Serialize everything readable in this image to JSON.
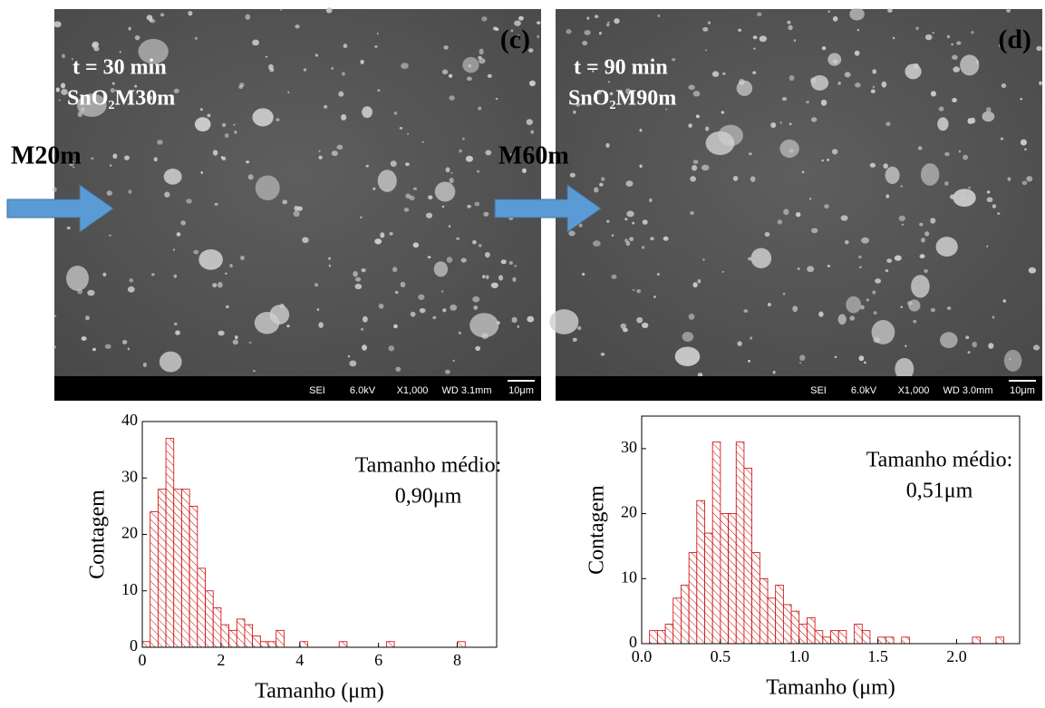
{
  "panels": [
    {
      "label": "(c)",
      "time": "t = 30 min",
      "sample": "SnO₂M30m",
      "arrow_label": "M20m",
      "info": [
        "SEI",
        "6.0kV",
        "X1,000",
        "WD 3.1mm",
        "10μm"
      ]
    },
    {
      "label": "(d)",
      "time": "t = 90 min",
      "sample": "SnO₂M90m",
      "arrow_label": "M60m",
      "info": [
        "SEI",
        "6.0kV",
        "X1,000",
        "WD 3.0mm",
        "10μm"
      ]
    }
  ],
  "chart_data": [
    {
      "type": "histogram",
      "xlabel": "Tamanho (μm)",
      "ylabel": "Contagem",
      "annotation": [
        "Tamanho médio:",
        "0,90μm"
      ],
      "color": "#cc0000",
      "bins": [
        0,
        0.2,
        0.4,
        0.6,
        0.8,
        1.0,
        1.2,
        1.4,
        1.6,
        1.8,
        2.0,
        2.2,
        2.4,
        2.6,
        2.8,
        3.0,
        3.2,
        3.4,
        3.6,
        3.8,
        4.0,
        4.2,
        4.4,
        4.6,
        4.8,
        5.0,
        5.2,
        5.4,
        5.6,
        5.8,
        6.0,
        6.2,
        6.4,
        6.6,
        6.8,
        7.0,
        7.2,
        7.4,
        7.6,
        7.8,
        8.0,
        8.2
      ],
      "values": [
        1,
        24,
        28,
        37,
        28,
        28,
        25,
        14,
        10,
        7,
        4,
        3,
        5,
        4,
        2,
        1,
        1,
        3,
        0,
        0,
        1,
        0,
        0,
        0,
        0,
        1,
        0,
        0,
        0,
        0,
        0,
        1,
        0,
        0,
        0,
        0,
        0,
        0,
        0,
        0,
        1
      ],
      "xlim": [
        0,
        9
      ],
      "xticks": [
        0,
        2,
        4,
        6,
        8
      ],
      "ylim": [
        0,
        40
      ],
      "yticks": [
        0,
        10,
        20,
        30,
        40
      ]
    },
    {
      "type": "histogram",
      "xlabel": "Tamanho (μm)",
      "ylabel": "Contagem",
      "annotation": [
        "Tamanho médio:",
        "0,51μm"
      ],
      "color": "#cc0000",
      "bins": [
        0.05,
        0.1,
        0.15,
        0.2,
        0.25,
        0.3,
        0.35,
        0.4,
        0.45,
        0.5,
        0.55,
        0.6,
        0.65,
        0.7,
        0.75,
        0.8,
        0.85,
        0.9,
        0.95,
        1.0,
        1.05,
        1.1,
        1.15,
        1.2,
        1.25,
        1.3,
        1.35,
        1.4,
        1.45,
        1.5,
        1.55,
        1.6,
        1.65,
        1.7,
        1.75,
        1.8,
        1.85,
        1.9,
        1.95,
        2.0,
        2.05,
        2.1,
        2.15,
        2.2,
        2.25,
        2.3
      ],
      "values": [
        2,
        2,
        3,
        7,
        9,
        14,
        22,
        17,
        31,
        20,
        20,
        31,
        27,
        14,
        10,
        7,
        9,
        6,
        5,
        3,
        4,
        2,
        1,
        2,
        2,
        0,
        3,
        2,
        0,
        1,
        1,
        0,
        1,
        0,
        0,
        0,
        0,
        0,
        0,
        0,
        0,
        1,
        0,
        0,
        1
      ],
      "xlim": [
        0,
        2.4
      ],
      "xticks": [
        {
          "value": 0,
          "label": "0.0"
        },
        {
          "value": 0.5,
          "label": "0.5"
        },
        {
          "value": 1,
          "label": "1.0"
        },
        {
          "value": 1.5,
          "label": "1.5"
        },
        {
          "value": 2,
          "label": "2.0"
        }
      ],
      "ylim": [
        0,
        35
      ],
      "yticks": [
        0,
        10,
        20,
        30
      ]
    }
  ]
}
